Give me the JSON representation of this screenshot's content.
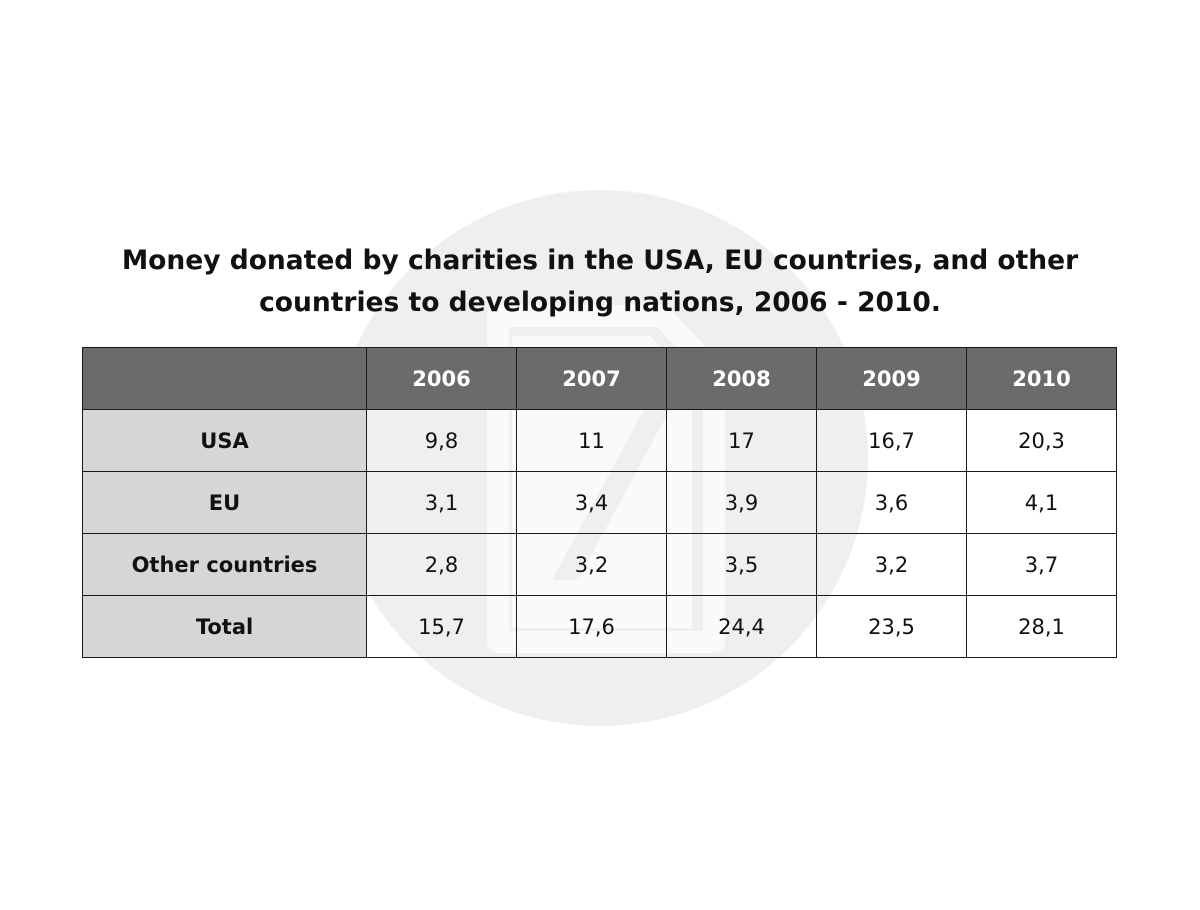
{
  "chart_data": {
    "type": "table",
    "title_lines": [
      "Money donated by charities in the USA, EU countries, and other",
      "countries to developing nations, 2006 - 2010."
    ],
    "corner_label": "",
    "columns": [
      "2006",
      "2007",
      "2008",
      "2009",
      "2010"
    ],
    "rows": [
      {
        "label": "USA",
        "values": [
          "9,8",
          "11",
          "17",
          "16,7",
          "20,3"
        ]
      },
      {
        "label": "EU",
        "values": [
          "3,1",
          "3,4",
          "3,9",
          "3,6",
          "4,1"
        ]
      },
      {
        "label": "Other countries",
        "values": [
          "2,8",
          "3,2",
          "3,5",
          "3,2",
          "3,7"
        ]
      },
      {
        "label": "Total",
        "values": [
          "15,7",
          "17,6",
          "24,4",
          "23,5",
          "28,1"
        ]
      }
    ]
  },
  "colors": {
    "header_background": "#6b6b6d",
    "row_label_background": "#d6d6d6",
    "watermark": "#ececec"
  },
  "icons": {
    "watermark": "logo-watermark-icon"
  }
}
